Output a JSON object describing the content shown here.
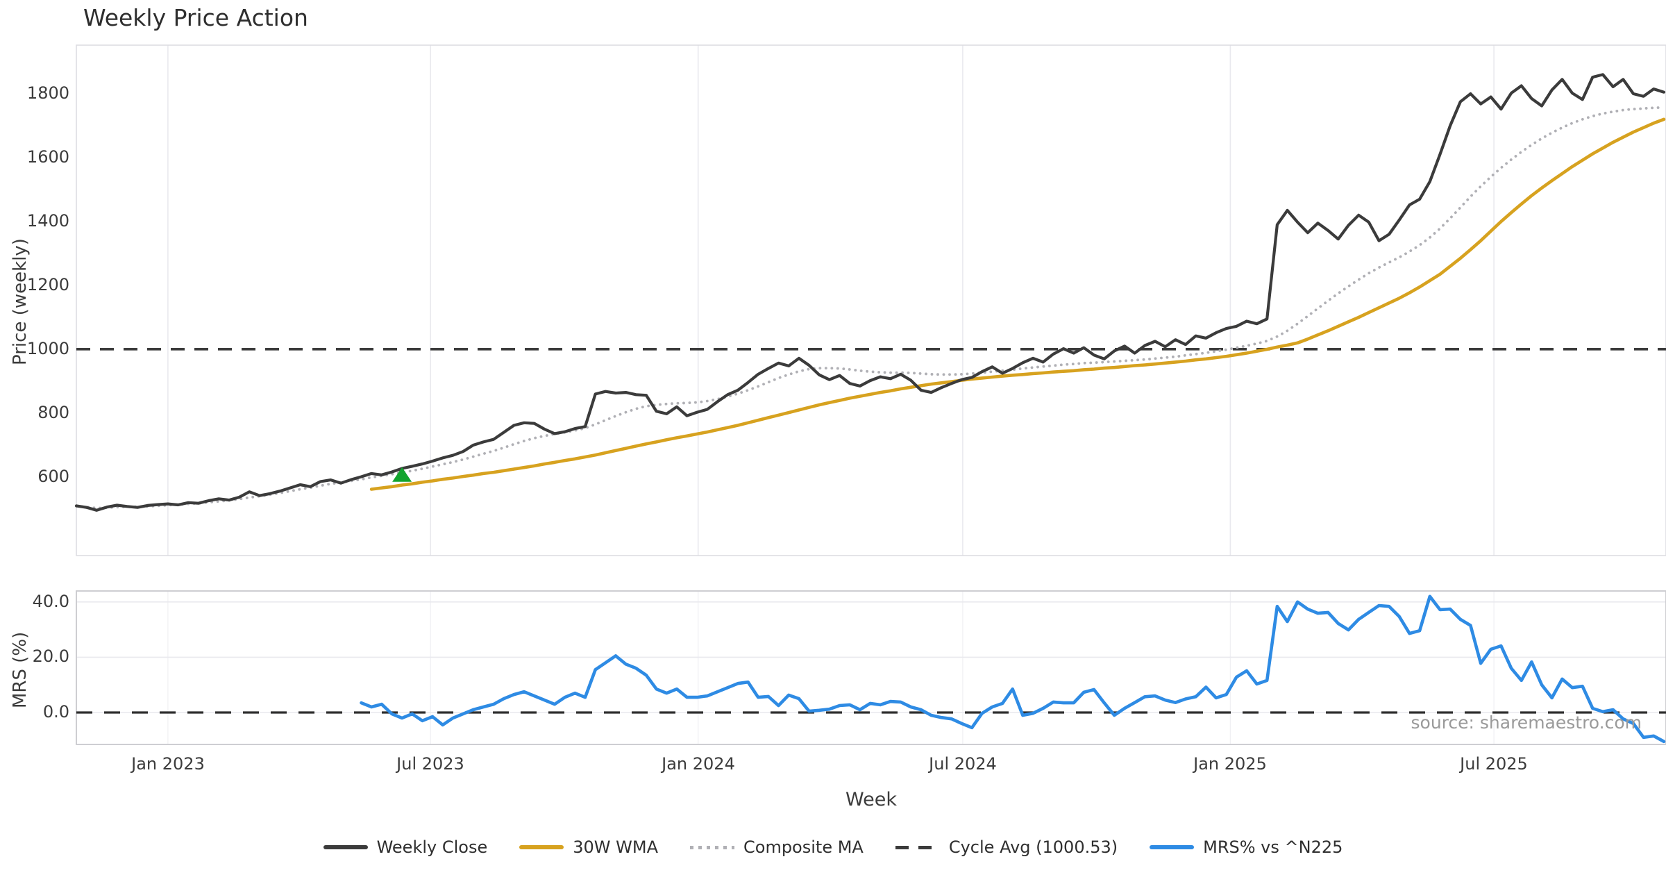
{
  "title": "Weekly Price Action",
  "source_note": "source: sharemaestro.com",
  "axes": {
    "price_label": "Price (weekly)",
    "mrs_label": "MRS (%)",
    "x_label": "Week",
    "price_ticks": [
      600,
      800,
      1000,
      1200,
      1400,
      1600,
      1800
    ],
    "mrs_ticks": [
      "0.0",
      "20.0",
      "40.0"
    ],
    "mrs_tick_values": [
      0,
      20,
      40
    ],
    "x_ticks": [
      "Jan 2023",
      "Jul 2023",
      "Jan 2024",
      "Jul 2024",
      "Jan 2025",
      "Jul 2025"
    ]
  },
  "legend": {
    "items": [
      {
        "label": "Weekly Close",
        "color": "#3b3b3b",
        "style": "solid"
      },
      {
        "label": "30W WMA",
        "color": "#d7a21f",
        "style": "solid"
      },
      {
        "label": "Composite MA",
        "color": "#b0b0b5",
        "style": "dotted"
      },
      {
        "label": "Cycle Avg (1000.53)",
        "color": "#3b3b3b",
        "style": "dashed"
      },
      {
        "label": "MRS% vs ^N225",
        "color": "#2e8be4",
        "style": "solid"
      }
    ]
  },
  "chart_data": {
    "type": "line",
    "x_unit": "week_index",
    "weeks_total": 157,
    "x_tick_weeks": [
      9.0,
      34.8,
      61.1,
      87.1,
      113.4,
      139.3
    ],
    "price_panel": {
      "ylabel": "Price (weekly)",
      "ylim": [
        350,
        1950
      ],
      "yticks": [
        600,
        800,
        1000,
        1200,
        1400,
        1600,
        1800
      ],
      "cycle_avg": 1000.53,
      "buy_marker": {
        "week": 32,
        "price": 607,
        "color": "#12a42e",
        "shape": "triangle-up"
      },
      "series": [
        {
          "name": "Weekly Close",
          "color": "#3b3b3b",
          "style": "solid",
          "width": 4.2,
          "start_week": 0,
          "values": [
            510,
            505,
            496,
            506,
            512,
            508,
            505,
            511,
            514,
            516,
            513,
            520,
            518,
            526,
            532,
            528,
            537,
            554,
            542,
            548,
            556,
            566,
            576,
            570,
            586,
            591,
            581,
            592,
            601,
            611,
            607,
            616,
            627,
            634,
            641,
            650,
            660,
            668,
            680,
            700,
            710,
            718,
            740,
            762,
            770,
            768,
            750,
            736,
            742,
            752,
            758,
            860,
            868,
            863,
            865,
            858,
            856,
            806,
            798,
            820,
            792,
            803,
            812,
            836,
            858,
            872,
            896,
            922,
            940,
            957,
            948,
            972,
            950,
            920,
            905,
            918,
            893,
            885,
            902,
            914,
            908,
            922,
            903,
            872,
            865,
            880,
            893,
            905,
            912,
            930,
            945,
            925,
            940,
            958,
            972,
            960,
            985,
            1002,
            988,
            1005,
            982,
            970,
            995,
            1010,
            988,
            1012,
            1025,
            1008,
            1030,
            1015,
            1042,
            1035,
            1052,
            1065,
            1072,
            1088,
            1080,
            1095,
            1390,
            1435,
            1398,
            1365,
            1395,
            1372,
            1345,
            1388,
            1420,
            1398,
            1340,
            1360,
            1405,
            1452,
            1470,
            1525,
            1610,
            1700,
            1775,
            1800,
            1768,
            1790,
            1752,
            1802,
            1825,
            1785,
            1762,
            1812,
            1845,
            1802,
            1782,
            1852,
            1860,
            1822,
            1845,
            1800,
            1792,
            1815,
            1805
          ]
        },
        {
          "name": "30W WMA",
          "color": "#d7a21f",
          "style": "solid",
          "width": 4.6,
          "start_week": 29,
          "values": [
            562,
            566,
            570,
            575,
            579,
            584,
            588,
            593,
            597,
            602,
            606,
            611,
            615,
            620,
            625,
            630,
            635,
            641,
            646,
            652,
            657,
            663,
            669,
            676,
            683,
            690,
            697,
            704,
            710,
            717,
            723,
            729,
            735,
            741,
            748,
            755,
            762,
            770,
            778,
            786,
            794,
            802,
            810,
            818,
            826,
            833,
            840,
            847,
            853,
            859,
            865,
            870,
            876,
            881,
            886,
            891,
            895,
            899,
            903,
            907,
            910,
            913,
            916,
            919,
            921,
            924,
            926,
            929,
            931,
            933,
            936,
            938,
            941,
            943,
            946,
            949,
            951,
            954,
            957,
            960,
            963,
            967,
            970,
            974,
            978,
            983,
            988,
            994,
            1000,
            1007,
            1013,
            1020,
            1032,
            1045,
            1058,
            1072,
            1086,
            1100,
            1115,
            1130,
            1145,
            1160,
            1177,
            1195,
            1215,
            1235,
            1260,
            1285,
            1312,
            1340,
            1370,
            1400,
            1428,
            1455,
            1481,
            1505,
            1528,
            1550,
            1572,
            1592,
            1612,
            1630,
            1648,
            1664,
            1680,
            1694,
            1708,
            1720
          ]
        },
        {
          "name": "Composite MA",
          "color": "#b0b0b5",
          "style": "dotted",
          "width": 3.8,
          "start_week": 0,
          "values": [
            509,
            506,
            503,
            504,
            506,
            507,
            507,
            508,
            510,
            512,
            514,
            516,
            518,
            521,
            524,
            527,
            531,
            536,
            540,
            545,
            550,
            556,
            562,
            567,
            573,
            579,
            583,
            588,
            593,
            599,
            604,
            609,
            614,
            620,
            626,
            633,
            640,
            647,
            655,
            664,
            673,
            682,
            692,
            703,
            713,
            722,
            729,
            735,
            740,
            746,
            753,
            765,
            778,
            791,
            803,
            814,
            822,
            826,
            829,
            831,
            832,
            834,
            838,
            844,
            852,
            861,
            872,
            884,
            897,
            910,
            921,
            931,
            938,
            941,
            941,
            940,
            937,
            933,
            930,
            928,
            927,
            927,
            926,
            924,
            922,
            921,
            921,
            922,
            924,
            927,
            930,
            933,
            936,
            940,
            943,
            946,
            949,
            952,
            954,
            957,
            958,
            960,
            962,
            964,
            966,
            968,
            971,
            974,
            977,
            981,
            985,
            989,
            994,
            999,
            1005,
            1011,
            1018,
            1026,
            1040,
            1058,
            1080,
            1104,
            1128,
            1152,
            1175,
            1197,
            1218,
            1238,
            1256,
            1272,
            1288,
            1306,
            1326,
            1350,
            1378,
            1410,
            1444,
            1478,
            1510,
            1540,
            1568,
            1594,
            1618,
            1640,
            1660,
            1678,
            1694,
            1708,
            1720,
            1730,
            1738,
            1744,
            1749,
            1752,
            1754,
            1756,
            1757
          ]
        }
      ]
    },
    "mrs_panel": {
      "ylabel": "MRS (%)",
      "ylim": [
        -11.5,
        44
      ],
      "yticks": [
        0,
        20,
        40
      ],
      "zero_line": 0,
      "series": [
        {
          "name": "MRS% vs ^N225",
          "color": "#2e8be4",
          "style": "solid",
          "width": 4.6,
          "start_week": 28,
          "values": [
            3.5,
            2.0,
            3.0,
            -0.5,
            -2.0,
            -0.5,
            -3.0,
            -1.5,
            -4.5,
            -2.0,
            -0.5,
            1.0,
            2.0,
            3.0,
            5.0,
            6.5,
            7.5,
            6.0,
            4.5,
            3.0,
            5.5,
            7.0,
            5.5,
            15.5,
            18.0,
            20.5,
            17.5,
            16.0,
            13.5,
            8.5,
            7.0,
            8.5,
            5.5,
            5.5,
            6.0,
            7.5,
            9.0,
            10.5,
            11.0,
            5.5,
            5.8,
            2.5,
            6.3,
            5.0,
            0.5,
            0.8,
            1.2,
            2.5,
            2.8,
            1.0,
            3.3,
            2.8,
            4.0,
            3.8,
            2.0,
            1.0,
            -1.0,
            -1.8,
            -2.3,
            -4.0,
            -5.5,
            -0.3,
            2.0,
            3.3,
            8.5,
            -1.0,
            -0.3,
            1.5,
            3.8,
            3.5,
            3.5,
            7.3,
            8.3,
            3.5,
            -1.0,
            1.5,
            3.6,
            5.7,
            6.0,
            4.5,
            3.6,
            4.9,
            5.7,
            9.2,
            5.3,
            6.5,
            12.8,
            15.1,
            10.3,
            11.6,
            38.4,
            32.9,
            40.0,
            37.4,
            35.9,
            36.2,
            32.2,
            29.9,
            33.7,
            36.2,
            38.7,
            38.4,
            34.7,
            28.6,
            29.6,
            42.0,
            37.2,
            37.4,
            33.7,
            31.5,
            17.8,
            22.9,
            24.1,
            16.0,
            11.6,
            18.3,
            10.0,
            5.3,
            12.1,
            9.0,
            9.5,
            1.5,
            0.3,
            1.0,
            -2.3,
            -4.0,
            -9.0,
            -8.5,
            -10.5
          ]
        }
      ]
    }
  }
}
